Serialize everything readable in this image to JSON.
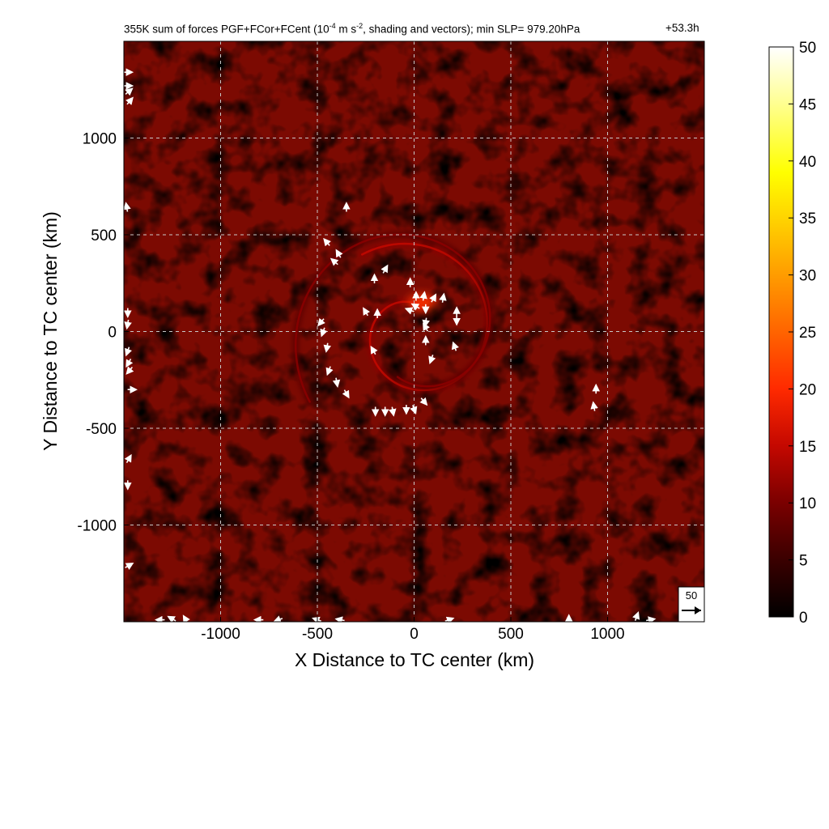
{
  "chart_data": {
    "type": "heatmap",
    "title": {
      "prefix": "355K sum of forces PGF+FCor+FCent (10",
      "exp1": "-4",
      "mid": " m s",
      "exp2": "-2",
      "suffix": ", shading and vectors); min SLP= 979.20hPa",
      "time": "+53.3h"
    },
    "xlabel": "X Distance to TC center (km)",
    "ylabel": "Y Distance to TC center (km)",
    "xlim": [
      -1500,
      1500
    ],
    "ylim": [
      -1500,
      1500
    ],
    "xticks": [
      -1000,
      -500,
      0,
      500,
      1000
    ],
    "yticks": [
      -1000,
      -500,
      0,
      500,
      1000
    ],
    "grid": true,
    "colorbar": {
      "min": 0,
      "max": 50,
      "ticks": [
        0,
        5,
        10,
        15,
        20,
        25,
        30,
        35,
        40,
        45,
        50
      ],
      "colors": [
        "#000000",
        "#2a0000",
        "#5c0000",
        "#8e0000",
        "#c80a00",
        "#ff3000",
        "#ff6a00",
        "#ffa000",
        "#ffd000",
        "#ffff00",
        "#ffff80",
        "#ffffff"
      ]
    },
    "reference_vector": {
      "label": "50"
    },
    "features": [
      {
        "name": "inner spiral band",
        "start_angle_deg": 70,
        "turns": 1.15,
        "r_start_km": 130,
        "r_end_km": 480,
        "intensity": 12
      },
      {
        "name": "outer spiral band",
        "start_angle_deg": 250,
        "turns": 0.9,
        "r_start_km": 250,
        "r_end_km": 650,
        "intensity": 9
      },
      {
        "name": "core maximum",
        "x_km": 40,
        "y_km": 150,
        "intensity": 22
      }
    ],
    "vectors": [
      {
        "x": -350,
        "y": 640,
        "dir": 90
      },
      {
        "x": -450,
        "y": 460,
        "dir": 130
      },
      {
        "x": -390,
        "y": 400,
        "dir": 120
      },
      {
        "x": -410,
        "y": 360,
        "dir": 140
      },
      {
        "x": -205,
        "y": 270,
        "dir": 90
      },
      {
        "x": -150,
        "y": 320,
        "dir": 60
      },
      {
        "x": -20,
        "y": 250,
        "dir": 90
      },
      {
        "x": 10,
        "y": 180,
        "dir": 90
      },
      {
        "x": 50,
        "y": 180,
        "dir": 80
      },
      {
        "x": 100,
        "y": 170,
        "dir": 60
      },
      {
        "x": 150,
        "y": 170,
        "dir": 80
      },
      {
        "x": 220,
        "y": 100,
        "dir": 90
      },
      {
        "x": 220,
        "y": 60,
        "dir": 270
      },
      {
        "x": 60,
        "y": 120,
        "dir": 270
      },
      {
        "x": 10,
        "y": 130,
        "dir": 150
      },
      {
        "x": -20,
        "y": 110,
        "dir": 160
      },
      {
        "x": 60,
        "y": 50,
        "dir": 260
      },
      {
        "x": 60,
        "y": 20,
        "dir": 120
      },
      {
        "x": 60,
        "y": -50,
        "dir": 90
      },
      {
        "x": 210,
        "y": -80,
        "dir": 110
      },
      {
        "x": 90,
        "y": -140,
        "dir": 250
      },
      {
        "x": -250,
        "y": 100,
        "dir": 120
      },
      {
        "x": -190,
        "y": 90,
        "dir": 90
      },
      {
        "x": -210,
        "y": -100,
        "dir": 120
      },
      {
        "x": -480,
        "y": 50,
        "dir": 230
      },
      {
        "x": -470,
        "y": 0,
        "dir": 250
      },
      {
        "x": -450,
        "y": -80,
        "dir": 260
      },
      {
        "x": -440,
        "y": -200,
        "dir": 250
      },
      {
        "x": -400,
        "y": -260,
        "dir": 280
      },
      {
        "x": -350,
        "y": -320,
        "dir": 300
      },
      {
        "x": -200,
        "y": -410,
        "dir": 270
      },
      {
        "x": -150,
        "y": -410,
        "dir": 270
      },
      {
        "x": -110,
        "y": -410,
        "dir": 280
      },
      {
        "x": -40,
        "y": -400,
        "dir": 270
      },
      {
        "x": 0,
        "y": -400,
        "dir": 290
      },
      {
        "x": 50,
        "y": -360,
        "dir": 310
      },
      {
        "x": 940,
        "y": -300,
        "dir": 90
      },
      {
        "x": 930,
        "y": -390,
        "dir": 100
      },
      {
        "x": -1480,
        "y": 1340,
        "dir": 0
      },
      {
        "x": -1480,
        "y": 1270,
        "dir": 0
      },
      {
        "x": -1475,
        "y": 1240,
        "dir": 40
      },
      {
        "x": -1470,
        "y": 1190,
        "dir": 50
      },
      {
        "x": -1485,
        "y": 640,
        "dir": 100
      },
      {
        "x": -1480,
        "y": 100,
        "dir": 270
      },
      {
        "x": -1480,
        "y": 40,
        "dir": 260
      },
      {
        "x": -1480,
        "y": -100,
        "dir": 250
      },
      {
        "x": -1475,
        "y": -160,
        "dir": 240
      },
      {
        "x": -1470,
        "y": -200,
        "dir": 230
      },
      {
        "x": -1460,
        "y": -300,
        "dir": 0
      },
      {
        "x": -1475,
        "y": -660,
        "dir": 60
      },
      {
        "x": -1480,
        "y": -790,
        "dir": 270
      },
      {
        "x": -1475,
        "y": -1210,
        "dir": 30
      },
      {
        "x": -1310,
        "y": -1490,
        "dir": 180
      },
      {
        "x": -1250,
        "y": -1485,
        "dir": 150
      },
      {
        "x": -1180,
        "y": -1490,
        "dir": 120
      },
      {
        "x": -800,
        "y": -1490,
        "dir": 180
      },
      {
        "x": -700,
        "y": -1490,
        "dir": 200
      },
      {
        "x": -500,
        "y": -1490,
        "dir": 160
      },
      {
        "x": -380,
        "y": -1490,
        "dir": 170
      },
      {
        "x": 180,
        "y": -1490,
        "dir": 20
      },
      {
        "x": 800,
        "y": -1490,
        "dir": 90
      },
      {
        "x": 1150,
        "y": -1475,
        "dir": 70
      },
      {
        "x": 1220,
        "y": -1490,
        "dir": 10
      }
    ]
  }
}
